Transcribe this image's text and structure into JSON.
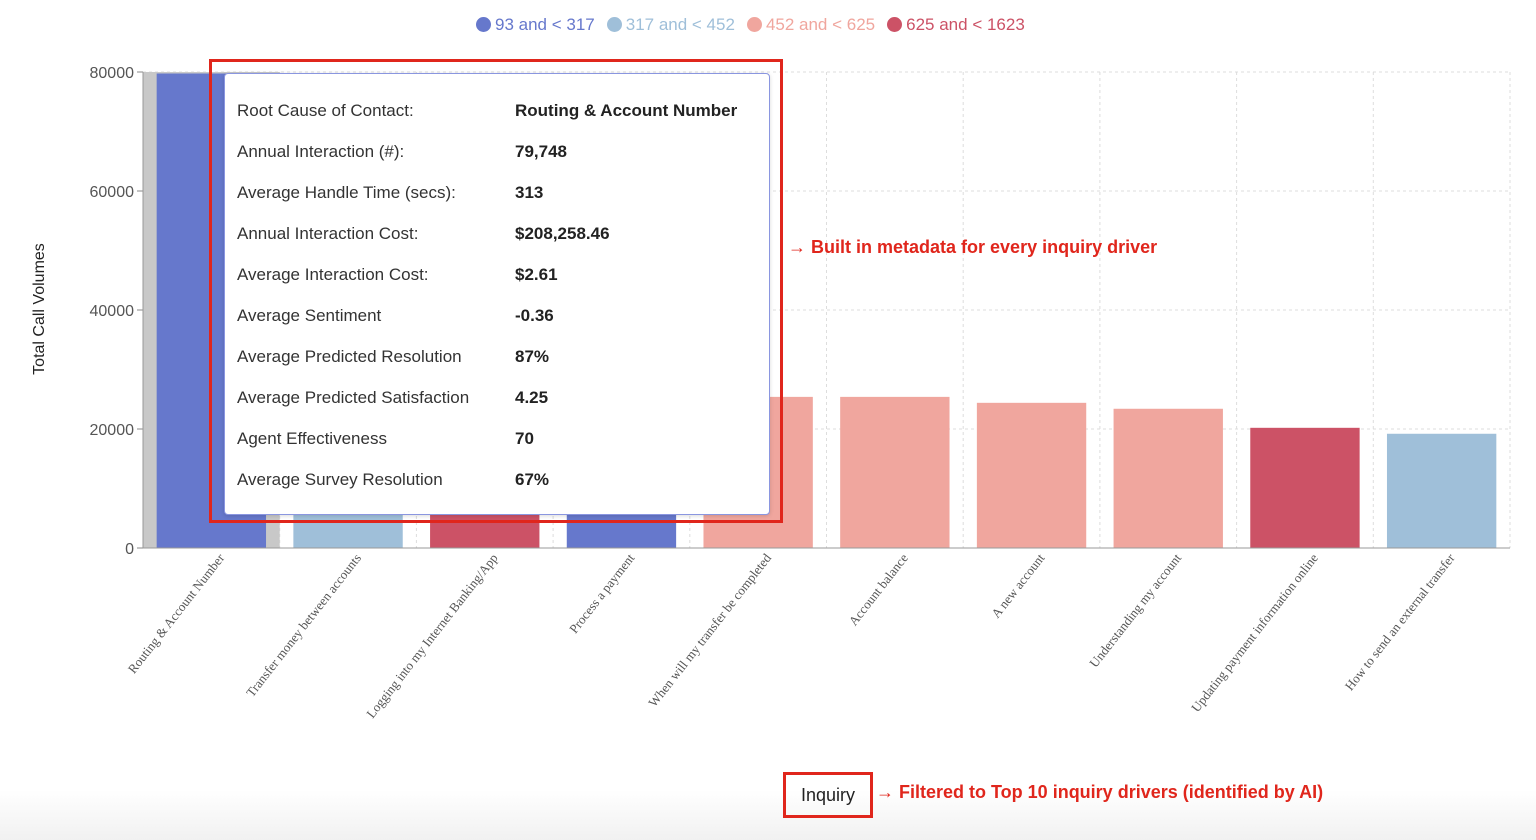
{
  "chart_data": {
    "type": "bar",
    "ylabel": "Total Call Volumes",
    "xlabel": "Inquiry",
    "ylim": [
      0,
      80000
    ],
    "yticks": [
      0,
      20000,
      40000,
      60000,
      80000
    ],
    "grid": true,
    "legend_placement": "top",
    "legend": [
      {
        "label": "93 and < 317",
        "color": "#6678cc"
      },
      {
        "label": "317 and < 452",
        "color": "#9fbfd9"
      },
      {
        "label": "452 and < 625",
        "color": "#f0a69e"
      },
      {
        "label": "625 and < 1623",
        "color": "#cc5266"
      }
    ],
    "categories": [
      "Routing & Account Number",
      "Transfer money between accounts",
      "Logging into my Internet Banking/App",
      "Process a payment",
      "When will my transfer be completed",
      "Account balance",
      "A new account",
      "Understanding my account",
      "Updating payment information online",
      "How to send an external transfer"
    ],
    "values": [
      79748,
      45000,
      32000,
      27000,
      25400,
      25400,
      24400,
      23400,
      20200,
      19200
    ],
    "color_groups": [
      0,
      1,
      3,
      0,
      2,
      2,
      2,
      2,
      3,
      1
    ]
  },
  "tooltip": {
    "rows": [
      {
        "k": "Root Cause of Contact:",
        "v": "Routing & Account Number"
      },
      {
        "k": "Annual Interaction (#):",
        "v": "79,748"
      },
      {
        "k": "Average Handle Time (secs):",
        "v": "313"
      },
      {
        "k": "Annual Interaction Cost:",
        "v": "$208,258.46"
      },
      {
        "k": "Average Interaction Cost:",
        "v": "$2.61"
      },
      {
        "k": "Average Sentiment",
        "v": "-0.36"
      },
      {
        "k": "Average Predicted Resolution",
        "v": "87%"
      },
      {
        "k": "Average Predicted Satisfaction",
        "v": "4.25"
      },
      {
        "k": "Agent Effectiveness",
        "v": "70"
      },
      {
        "k": "Average Survey Resolution",
        "v": "67%"
      }
    ]
  },
  "annotations": {
    "metadata": "Built in metadata for every inquiry driver",
    "filter": "Filtered to Top 10 inquiry drivers (identified by AI)"
  }
}
